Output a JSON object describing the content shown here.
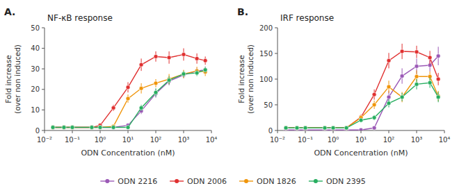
{
  "chart_data": [
    {
      "type": "line",
      "title": "NF-κB response",
      "annotations": [
        "A."
      ],
      "xlabel": "ODN Concentration (nM)",
      "ylabel": "Fold increase\n(over non induced)",
      "log": "x",
      "grid": false,
      "legend": "bottom",
      "marker": "circle",
      "line_style": "solid",
      "xlim": [
        0.01,
        10000
      ],
      "xticks": [
        {
          "value": 0.01,
          "label": "10⁻²"
        },
        {
          "value": 0.1,
          "label": "10⁻¹"
        },
        {
          "value": 1,
          "label": "10⁰"
        },
        {
          "value": 10,
          "label": "10¹"
        },
        {
          "value": 100,
          "label": "10²"
        },
        {
          "value": 1000,
          "label": "10³"
        },
        {
          "value": 10000,
          "label": "10⁴"
        }
      ],
      "ylim": [
        0,
        50
      ],
      "yticks": [
        0,
        10,
        20,
        30,
        40,
        50
      ],
      "x": [
        0.02,
        0.05,
        0.1,
        0.5,
        1,
        3,
        10,
        30,
        100,
        300,
        1000,
        3000,
        6000
      ],
      "series": [
        {
          "name": "ODN 2216",
          "color": "#9b59b6",
          "values": [
            1.5,
            1.5,
            1.5,
            1.5,
            1.5,
            1.5,
            2.5,
            9.5,
            18.0,
            24.0,
            27.0,
            29.0,
            29.5
          ],
          "errors": [
            0.2,
            0.2,
            0.2,
            0.2,
            0.2,
            0.2,
            0.4,
            1.5,
            2.0,
            2.0,
            1.5,
            1.5,
            1.5
          ]
        },
        {
          "name": "ODN 2006",
          "color": "#e03030",
          "values": [
            1.5,
            1.5,
            1.5,
            1.5,
            2.5,
            11.0,
            21.0,
            32.0,
            36.0,
            35.5,
            37.0,
            35.0,
            34.0
          ],
          "errors": [
            0.2,
            0.2,
            0.2,
            0.2,
            0.4,
            1.5,
            2.5,
            3.0,
            2.5,
            3.0,
            3.0,
            2.5,
            2.0
          ]
        },
        {
          "name": "ODN 1826",
          "color": "#f0950a",
          "values": [
            1.5,
            1.5,
            1.5,
            1.5,
            1.5,
            2.0,
            15.5,
            20.5,
            23.0,
            25.0,
            27.5,
            29.0,
            28.5
          ],
          "errors": [
            0.2,
            0.2,
            0.2,
            0.2,
            0.2,
            0.3,
            2.0,
            2.5,
            2.0,
            2.5,
            2.0,
            2.0,
            2.0
          ]
        },
        {
          "name": "ODN 2395",
          "color": "#27ae60",
          "values": [
            1.5,
            1.5,
            1.5,
            1.5,
            1.5,
            1.5,
            1.5,
            11.0,
            18.5,
            24.5,
            27.5,
            28.0,
            29.5
          ],
          "errors": [
            0.2,
            0.2,
            0.2,
            0.2,
            0.2,
            0.2,
            0.2,
            1.5,
            2.0,
            2.0,
            1.5,
            1.5,
            1.5
          ]
        }
      ]
    },
    {
      "type": "line",
      "title": "IRF response",
      "annotations": [
        "B."
      ],
      "xlabel": "ODN Concentration (nM)",
      "ylabel": "Fold increase\n(over non induced)",
      "log": "x",
      "grid": false,
      "marker": "circle",
      "line_style": "solid",
      "xlim": [
        0.01,
        10000
      ],
      "xticks": [
        {
          "value": 0.01,
          "label": "10⁻²"
        },
        {
          "value": 0.1,
          "label": "10⁻¹"
        },
        {
          "value": 1,
          "label": "10⁰"
        },
        {
          "value": 10,
          "label": "10¹"
        },
        {
          "value": 100,
          "label": "10²"
        },
        {
          "value": 1000,
          "label": "10³"
        },
        {
          "value": 10000,
          "label": "10⁴"
        }
      ],
      "ylim": [
        0,
        200
      ],
      "yticks": [
        0,
        50,
        100,
        150,
        200
      ],
      "x": [
        0.02,
        0.05,
        0.1,
        0.5,
        1,
        3,
        10,
        30,
        100,
        300,
        1000,
        3000,
        6000
      ],
      "series": [
        {
          "color": "#9b59b6",
          "values": [
            1.0,
            1.0,
            1.0,
            1.0,
            1.0,
            1.0,
            1.0,
            5.0,
            65.0,
            106.0,
            125.0,
            127.0,
            145.0
          ],
          "errors": [
            0.5,
            0.5,
            0.5,
            0.5,
            0.5,
            0.5,
            0.5,
            2.0,
            12.0,
            15.0,
            15.0,
            12.0,
            18.0
          ]
        },
        {
          "color": "#e03030",
          "values": [
            5.0,
            5.0,
            5.0,
            5.0,
            5.0,
            5.0,
            26.0,
            70.0,
            136.0,
            154.0,
            153.0,
            142.0,
            100.0
          ],
          "errors": [
            1.0,
            1.0,
            1.0,
            1.0,
            1.0,
            1.0,
            5.0,
            10.0,
            15.0,
            15.0,
            12.0,
            13.0,
            12.0
          ]
        },
        {
          "color": "#f0950a",
          "values": [
            5.0,
            5.0,
            5.0,
            5.0,
            5.0,
            5.0,
            25.0,
            50.0,
            85.0,
            65.0,
            105.0,
            105.0,
            67.0
          ],
          "errors": [
            1.0,
            1.0,
            1.0,
            1.0,
            1.0,
            1.0,
            5.0,
            8.0,
            12.0,
            10.0,
            12.0,
            10.0,
            10.0
          ]
        },
        {
          "color": "#27ae60",
          "values": [
            5.0,
            5.0,
            5.0,
            5.0,
            5.0,
            5.0,
            20.0,
            25.0,
            53.0,
            65.0,
            90.0,
            93.0,
            65.0
          ],
          "errors": [
            1.0,
            1.0,
            1.0,
            1.0,
            1.0,
            1.0,
            4.0,
            5.0,
            8.0,
            8.0,
            10.0,
            10.0,
            10.0
          ]
        }
      ]
    }
  ]
}
